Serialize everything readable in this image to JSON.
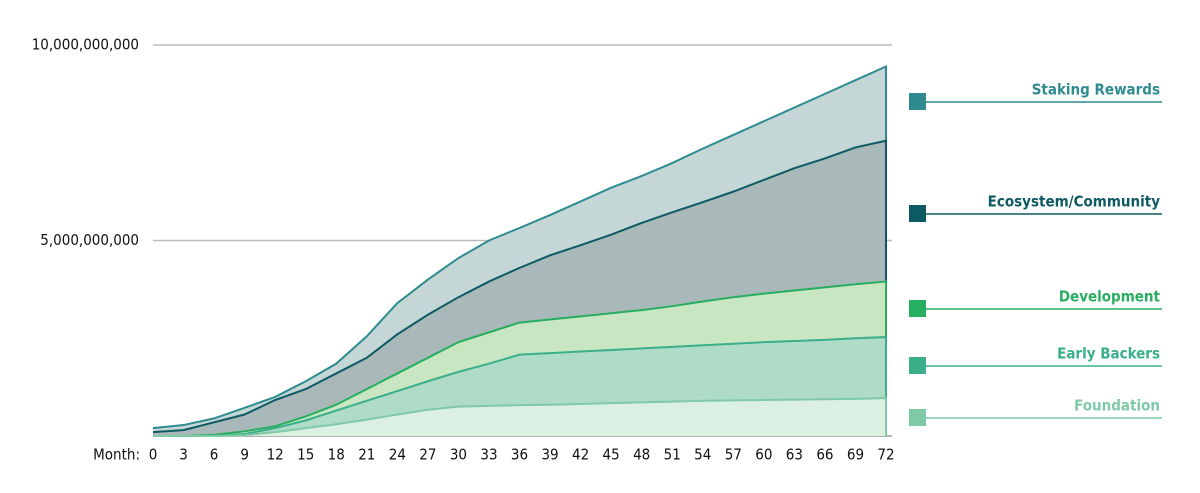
{
  "chart_data": {
    "type": "stacked-area",
    "xlabel": "Month:",
    "x": [
      0,
      3,
      6,
      9,
      12,
      15,
      18,
      21,
      24,
      27,
      30,
      33,
      36,
      39,
      42,
      45,
      48,
      51,
      54,
      57,
      60,
      63,
      66,
      69,
      72
    ],
    "xlim": [
      0,
      72
    ],
    "ylim": [
      0,
      10000000000
    ],
    "yticks": [
      {
        "value": 5000000000,
        "label": "5,000,000,000"
      },
      {
        "value": 10000000000,
        "label": "10,000,000,000"
      }
    ],
    "grid": true,
    "series": [
      {
        "name": "Foundation",
        "color": "#7fcaa6",
        "fill": "#dcefe3",
        "values": [
          0,
          0,
          0,
          20000000.0,
          100000000.0,
          200000000.0,
          300000000.0,
          420000000.0,
          550000000.0,
          670000000.0,
          750000000.0,
          770000000.0,
          790000000.0,
          800000000.0,
          820000000.0,
          840000000.0,
          860000000.0,
          880000000.0,
          900000000.0,
          910000000.0,
          920000000.0,
          930000000.0,
          940000000.0,
          950000000.0,
          970000000.0
        ]
      },
      {
        "name": "Early Backers",
        "color": "#3aaf8a",
        "fill": "#aedcc6",
        "values": [
          0,
          0,
          0,
          30000000.0,
          100000000.0,
          200000000.0,
          350000000.0,
          480000000.0,
          600000000.0,
          730000000.0,
          890000000.0,
          1080000000.0,
          1290000000.0,
          1320000000.0,
          1340000000.0,
          1360000000.0,
          1380000000.0,
          1400000000.0,
          1420000000.0,
          1450000000.0,
          1480000000.0,
          1500000000.0,
          1520000000.0,
          1550000000.0,
          1560000000.0
        ]
      },
      {
        "name": "Development",
        "color": "#27ae60",
        "fill": "#c9e6c3",
        "values": [
          0,
          0,
          30000000.0,
          70000000.0,
          50000000.0,
          100000000.0,
          150000000.0,
          300000000.0,
          450000000.0,
          600000000.0,
          760000000.0,
          800000000.0,
          820000000.0,
          860000000.0,
          900000000.0,
          940000000.0,
          980000000.0,
          1040000000.0,
          1120000000.0,
          1190000000.0,
          1240000000.0,
          1290000000.0,
          1340000000.0,
          1380000000.0,
          1420000000.0
        ]
      },
      {
        "name": "Ecosystem/Community",
        "color": "#0e5a62",
        "fill": "#a9b8b8",
        "values": [
          100000000.0,
          150000000.0,
          320000000.0,
          430000000.0,
          670000000.0,
          700000000.0,
          800000000.0,
          800000000.0,
          1000000000.0,
          1100000000.0,
          1150000000.0,
          1300000000.0,
          1400000000.0,
          1640000000.0,
          1820000000.0,
          2010000000.0,
          2230000000.0,
          2400000000.0,
          2540000000.0,
          2700000000.0,
          2910000000.0,
          3130000000.0,
          3300000000.0,
          3500000000.0,
          3600000000.0
        ]
      },
      {
        "name": "Staking Rewards",
        "color": "#2e8b8f",
        "fill": "#c4d6d6",
        "values": [
          100000000.0,
          130000000.0,
          100000000.0,
          170000000.0,
          80000000.0,
          200000000.0,
          250000000.0,
          550000000.0,
          800000000.0,
          900000000.0,
          1000000000.0,
          1050000000.0,
          1020000000.0,
          1030000000.0,
          1120000000.0,
          1200000000.0,
          1200000000.0,
          1260000000.0,
          1370000000.0,
          1450000000.0,
          1500000000.0,
          1550000000.0,
          1650000000.0,
          1720000000.0,
          1900000000.0
        ]
      }
    ]
  }
}
